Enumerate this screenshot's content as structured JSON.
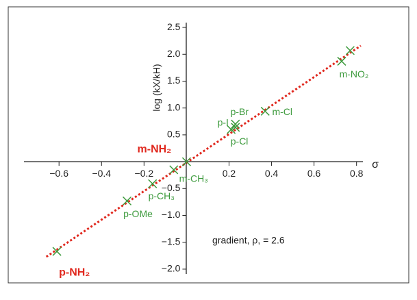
{
  "chart_data": {
    "type": "scatter",
    "x_label": "σ",
    "y_label": "log (kX/kH)",
    "annotation": "gradient, ρ, = 2.6",
    "xlim": [
      -0.765,
      0.83
    ],
    "ylim": [
      -2.09,
      2.59
    ],
    "xticks": [
      {
        "value": -0.6,
        "label": "−0.6"
      },
      {
        "value": -0.4,
        "label": "−0.4"
      },
      {
        "value": -0.2,
        "label": "−0.2"
      },
      0.2,
      0.4,
      0.6,
      0.8
    ],
    "yticks": [
      2.5,
      {
        "value": 2,
        "label": "2.0"
      },
      1.5,
      {
        "value": 1,
        "label": "1.0"
      },
      0.5,
      {
        "value": -0.5,
        "label": "−0.5"
      },
      {
        "value": -1,
        "label": "−1.0"
      },
      {
        "value": -1.5,
        "label": "−1.5"
      },
      {
        "value": -2,
        "label": "−2.0"
      }
    ],
    "marker_color": "#3c9a3c",
    "points": [
      {
        "name": "p-NH₂",
        "x": -0.61,
        "y": -1.67,
        "label_color": "#e0281e"
      },
      {
        "name": "p-OMe",
        "x": -0.28,
        "y": -0.73,
        "label_color": "#3c9a3c"
      },
      {
        "name": "p-CH₃",
        "x": -0.16,
        "y": -0.41,
        "label_color": "#3c9a3c"
      },
      {
        "name": "m-CH₃",
        "x": -0.06,
        "y": -0.15,
        "label_color": "#3c9a3c"
      },
      {
        "name": "m-NH₂",
        "x": 0,
        "y": 0,
        "label_color": "#e0281e"
      },
      {
        "name": "p-Br",
        "x": 0.23,
        "y": 0.7,
        "label_color": "#3c9a3c"
      },
      {
        "name": "p-I",
        "x": 0.23,
        "y": 0.64,
        "label_color": "#3c9a3c"
      },
      {
        "name": "p-Cl",
        "x": 0.21,
        "y": 0.6,
        "label_color": "#3c9a3c"
      },
      {
        "name": "m-Cl",
        "x": 0.37,
        "y": 0.94,
        "label_color": "#3c9a3c"
      },
      {
        "name": "m-NO₂",
        "x": 0.73,
        "y": 1.87,
        "label_color": "#3c9a3c"
      },
      {
        "name": null,
        "x": 0.77,
        "y": 2.07,
        "label_color": "#3c9a3c"
      }
    ],
    "fit_line": {
      "color": "#e0281e",
      "x": [
        -0.66,
        0.82
      ],
      "y": [
        -1.77,
        2.16
      ]
    }
  }
}
